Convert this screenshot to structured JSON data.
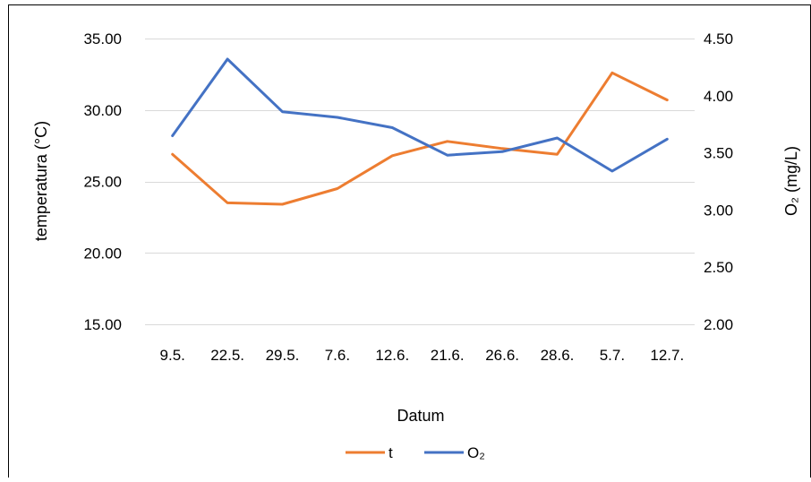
{
  "chart_data": {
    "type": "line",
    "title": "",
    "xlabel": "Datum",
    "ylabel_left": "temperatura (°C)",
    "ylabel_right": "O₂ (mg/L)",
    "categories": [
      "9.5.",
      "22.5.",
      "29.5.",
      "7.6.",
      "12.6.",
      "21.6.",
      "26.6.",
      "28.6.",
      "5.7.",
      "12.7."
    ],
    "y_left": {
      "lim": [
        15,
        35
      ],
      "ticks": [
        "15.00",
        "20.00",
        "25.00",
        "30.00",
        "35.00"
      ],
      "tick_values": [
        15,
        20,
        25,
        30,
        35
      ]
    },
    "y_right": {
      "lim": [
        2,
        4.5
      ],
      "ticks": [
        "2.00",
        "2.50",
        "3.00",
        "3.50",
        "4.00",
        "4.50"
      ],
      "tick_values": [
        2,
        2.5,
        3,
        3.5,
        4,
        4.5
      ]
    },
    "grid": true,
    "legend_position": "bottom",
    "series": [
      {
        "name": "t",
        "axis": "left",
        "color": "#ED7D31",
        "values": [
          26.9,
          23.5,
          23.4,
          24.5,
          26.8,
          27.8,
          27.3,
          26.9,
          32.6,
          30.7
        ]
      },
      {
        "name": "O₂",
        "axis": "right",
        "color": "#4472C4",
        "values": [
          3.65,
          4.32,
          3.86,
          3.81,
          3.72,
          3.48,
          3.51,
          3.63,
          3.34,
          3.62
        ]
      }
    ]
  }
}
